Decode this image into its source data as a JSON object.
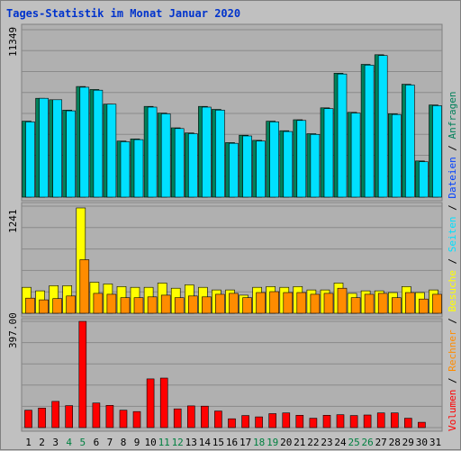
{
  "chart_data": {
    "type": "bar",
    "title": "Tages-Statistik im Monat Januar 2020",
    "colors": {
      "title": "#0033cc",
      "anfragen": "#00805a",
      "dateien": "#0040ff",
      "seiten": "#00e0ff",
      "besuche": "#ffff00",
      "rechner": "#ff8c00",
      "volumen": "#ff0000",
      "weekend": "#008040",
      "panel_bg": "#b0b0b0",
      "grid": "#8a8a8a",
      "axis_text": "#000000"
    },
    "legend": [
      {
        "key": "volumen",
        "text": "Volumen"
      },
      {
        "key": "rechner",
        "text": "Rechner"
      },
      {
        "key": "besuche",
        "text": "Besuche"
      },
      {
        "key": "seiten",
        "text": "Seiten"
      },
      {
        "key": "dateien",
        "text": "Dateien"
      },
      {
        "key": "anfragen",
        "text": "Anfragen"
      }
    ],
    "categories": [
      "1",
      "2",
      "3",
      "4",
      "5",
      "6",
      "7",
      "8",
      "9",
      "10",
      "11",
      "12",
      "13",
      "14",
      "15",
      "16",
      "17",
      "18",
      "19",
      "20",
      "21",
      "22",
      "23",
      "24",
      "25",
      "26",
      "27",
      "28",
      "29",
      "30",
      "31"
    ],
    "weekend_days": [
      4,
      5,
      11,
      12,
      18,
      19,
      25,
      26
    ],
    "panels": [
      {
        "name": "hits",
        "ymax_label": "11349",
        "ymax": 11349,
        "series": [
          {
            "name": "Anfragen",
            "color_key": "anfragen",
            "values": [
              5150,
              6700,
              6600,
              5900,
              7500,
              7300,
              6300,
              3800,
              3950,
              6150,
              5700,
              4700,
              4350,
              6150,
              5950,
              3700,
              4200,
              3850,
              5150,
              4500,
              5250,
              4300,
              6050,
              8400,
              5750,
              9000,
              9650,
              5650,
              7650,
              2450,
              6250
            ]
          },
          {
            "name": "Dateien",
            "color_key": "seiten",
            "values": [
              5100,
              6700,
              6600,
              5850,
              7450,
              7250,
              6300,
              3750,
              3900,
              6100,
              5650,
              4650,
              4300,
              6100,
              5900,
              3650,
              4150,
              3800,
              5100,
              4450,
              5200,
              4250,
              6000,
              8350,
              5700,
              8950,
              9600,
              5600,
              7600,
              2400,
              6200
            ]
          }
        ]
      },
      {
        "name": "visits",
        "ymax_label": "1241",
        "ymax": 1241,
        "series": [
          {
            "name": "Besuche",
            "color_key": "besuche",
            "values": [
              300,
              260,
              320,
              320,
              1220,
              360,
              340,
              310,
              300,
              300,
              350,
              290,
              330,
              300,
              270,
              270,
              210,
              300,
              310,
              300,
              310,
              270,
              270,
              350,
              230,
              260,
              260,
              240,
              310,
              240,
              270
            ]
          },
          {
            "name": "Rechner",
            "color_key": "rechner",
            "values": [
              175,
              155,
              170,
              200,
              620,
              230,
              220,
              180,
              180,
              190,
              210,
              180,
              200,
              190,
              220,
              230,
              180,
              240,
              250,
              240,
              240,
              220,
              230,
              290,
              180,
              220,
              230,
              180,
              240,
              165,
              220
            ]
          }
        ]
      },
      {
        "name": "volume",
        "ymax_label": "397.00",
        "ymax": 397,
        "series": [
          {
            "name": "Volumen",
            "color_key": "volumen",
            "values": [
              65,
              73,
              98,
              82,
              397,
              92,
              83,
              65,
              60,
              182,
              185,
              70,
              81,
              80,
              62,
              33,
              45,
              40,
              52,
              55,
              46,
              35,
              46,
              48,
              45,
              47,
              55,
              55,
              35,
              20,
              0
            ]
          }
        ]
      }
    ]
  }
}
